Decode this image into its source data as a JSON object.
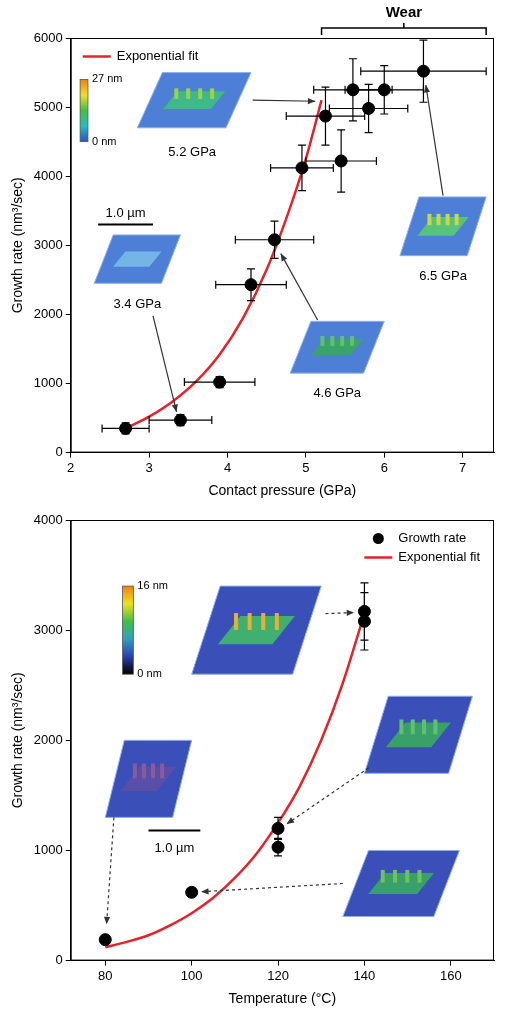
{
  "chart_data": [
    {
      "type": "scatter",
      "xlabel": "Contact pressure (GPa)",
      "ylabel": "Growth rate (nm³/sec)",
      "xlim": [
        2,
        7.4
      ],
      "xticks": [
        2,
        3,
        4,
        5,
        6,
        7
      ],
      "ylim": [
        0,
        6000
      ],
      "yticks": [
        0,
        1000,
        2000,
        3000,
        4000,
        5000,
        6000
      ],
      "grid": false,
      "legend": "upper left",
      "series": [
        {
          "type": "scatter",
          "color": "#000000",
          "marker": "circle",
          "x": [
            2.7,
            3.4,
            3.9,
            4.3,
            4.6,
            4.95,
            5.25,
            5.45,
            5.6,
            5.8,
            6.0,
            6.5
          ],
          "values": [
            350,
            470,
            1020,
            2430,
            3080,
            4120,
            4870,
            4220,
            5250,
            4980,
            5250,
            5520
          ],
          "x_error": [
            0.3,
            0.4,
            0.45,
            0.45,
            0.5,
            0.4,
            0.5,
            0.45,
            0.5,
            0.5,
            0.5,
            0.8
          ],
          "y_error": [
            80,
            80,
            80,
            230,
            270,
            330,
            420,
            450,
            450,
            350,
            350,
            450
          ]
        },
        {
          "name": "Exponential fit",
          "type": "line",
          "color": "#e8202a",
          "line_style": "solid",
          "x": [
            2.7,
            3.0,
            3.3,
            3.6,
            3.9,
            4.2,
            4.5,
            4.8,
            5.0,
            5.2
          ],
          "values": [
            350,
            520,
            740,
            1030,
            1420,
            1950,
            2650,
            3550,
            4250,
            5100
          ]
        }
      ],
      "annotations": [
        {
          "text": "5.2 GPa"
        },
        {
          "text": "3.4 GPa"
        },
        {
          "text": "4.6 GPa"
        },
        {
          "text": "6.5 GPa"
        }
      ],
      "scale_bar": "1.0 µm",
      "color_bar": {
        "range": [
          0,
          27
        ],
        "ticks": [
          {
            "value": 0,
            "label": "0 nm"
          },
          {
            "value": 27,
            "label": "27 nm"
          }
        ]
      },
      "bracket": {
        "text": "Wear",
        "x": [
          5.2,
          7.3
        ]
      }
    },
    {
      "type": "scatter",
      "xlabel": "Temperature (°C)",
      "ylabel": "Growth rate (nm³/sec)",
      "xlim": [
        72,
        170
      ],
      "xticks": [
        80,
        100,
        120,
        140,
        160
      ],
      "ylim": [
        0,
        4000
      ],
      "yticks": [
        0,
        1000,
        2000,
        3000,
        4000
      ],
      "grid": false,
      "legend": "upper right",
      "series": [
        {
          "name": "Growth rate",
          "type": "scatter",
          "color": "#000000",
          "marker": "circle",
          "x": [
            80,
            100,
            120,
            120,
            140,
            140
          ],
          "values": [
            190,
            620,
            1200,
            1030,
            3170,
            3080
          ],
          "y_error": [
            null,
            null,
            100,
            80,
            260,
            260
          ]
        },
        {
          "name": "Exponential fit",
          "type": "line",
          "color": "#e8202a",
          "line_style": "solid",
          "x": [
            80,
            85,
            90,
            95,
            100,
            105,
            110,
            115,
            120,
            125,
            130,
            135,
            140
          ],
          "values": [
            120,
            170,
            230,
            320,
            430,
            570,
            750,
            970,
            1250,
            1580,
            2000,
            2520,
            3150
          ]
        }
      ],
      "scale_bar": "1.0 µm",
      "color_bar": {
        "range": [
          0,
          16
        ],
        "ticks": [
          {
            "value": 0,
            "label": "0 nm"
          },
          {
            "value": 16,
            "label": "16 nm"
          }
        ]
      }
    }
  ]
}
